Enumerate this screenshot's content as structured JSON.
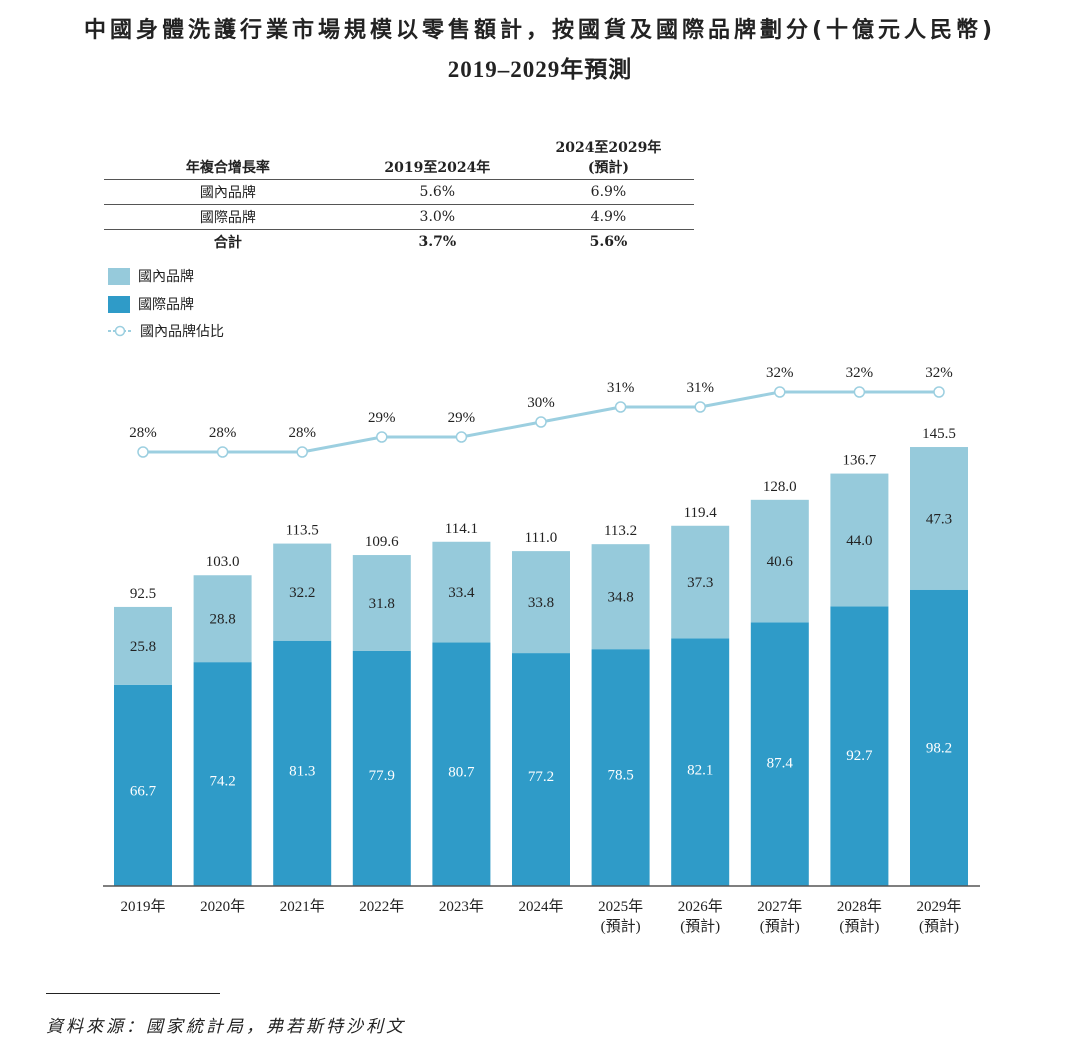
{
  "title": "中國身體洗護行業市場規模以零售額計，按國貨及國際品牌劃分(十億元人民幣)",
  "subtitle": "2019–2029年預測",
  "cagr_table": {
    "headers": [
      "年複合增長率",
      "2019至2024年",
      "2024至2029年",
      "(預計)"
    ],
    "rows": [
      {
        "label": "國內品牌",
        "a": "5.6%",
        "b": "6.9%"
      },
      {
        "label": "國際品牌",
        "a": "3.0%",
        "b": "4.9%"
      },
      {
        "label": "合計",
        "a": "3.7%",
        "b": "5.6%"
      }
    ]
  },
  "source": "資料來源：國家統計局，弗若斯特沙利文",
  "chart_data": {
    "type": "bar",
    "stacked": true,
    "categories": [
      "2019年",
      "2020年",
      "2021年",
      "2022年",
      "2023年",
      "2024年",
      "2025年",
      "2026年",
      "2027年",
      "2028年",
      "2029年"
    ],
    "forecast_label": "(預計)",
    "forecast_from_index": 6,
    "series": [
      {
        "name": "國際品牌",
        "color": "#2f9bc8",
        "values": [
          66.7,
          74.2,
          81.3,
          77.9,
          80.7,
          77.2,
          78.5,
          82.1,
          87.4,
          92.7,
          98.2
        ]
      },
      {
        "name": "國內品牌",
        "color": "#96cadb",
        "values": [
          25.8,
          28.8,
          32.2,
          31.8,
          33.4,
          33.8,
          34.8,
          37.3,
          40.6,
          44.0,
          47.3
        ]
      }
    ],
    "totals": [
      "92.5",
      "103.0",
      "113.5",
      "109.6",
      "114.1",
      "111.0",
      "113.2",
      "119.4",
      "128.0",
      "136.7",
      "145.5"
    ],
    "line_series": {
      "name": "國內品牌佔比",
      "color": "#9ccfe0",
      "values": [
        28,
        28,
        28,
        29,
        29,
        30,
        31,
        31,
        32,
        32,
        32
      ],
      "unit": "%"
    },
    "legend": [
      "國內品牌",
      "國際品牌",
      "國內品牌佔比"
    ],
    "legend_placement": "top-left",
    "grid": false
  }
}
